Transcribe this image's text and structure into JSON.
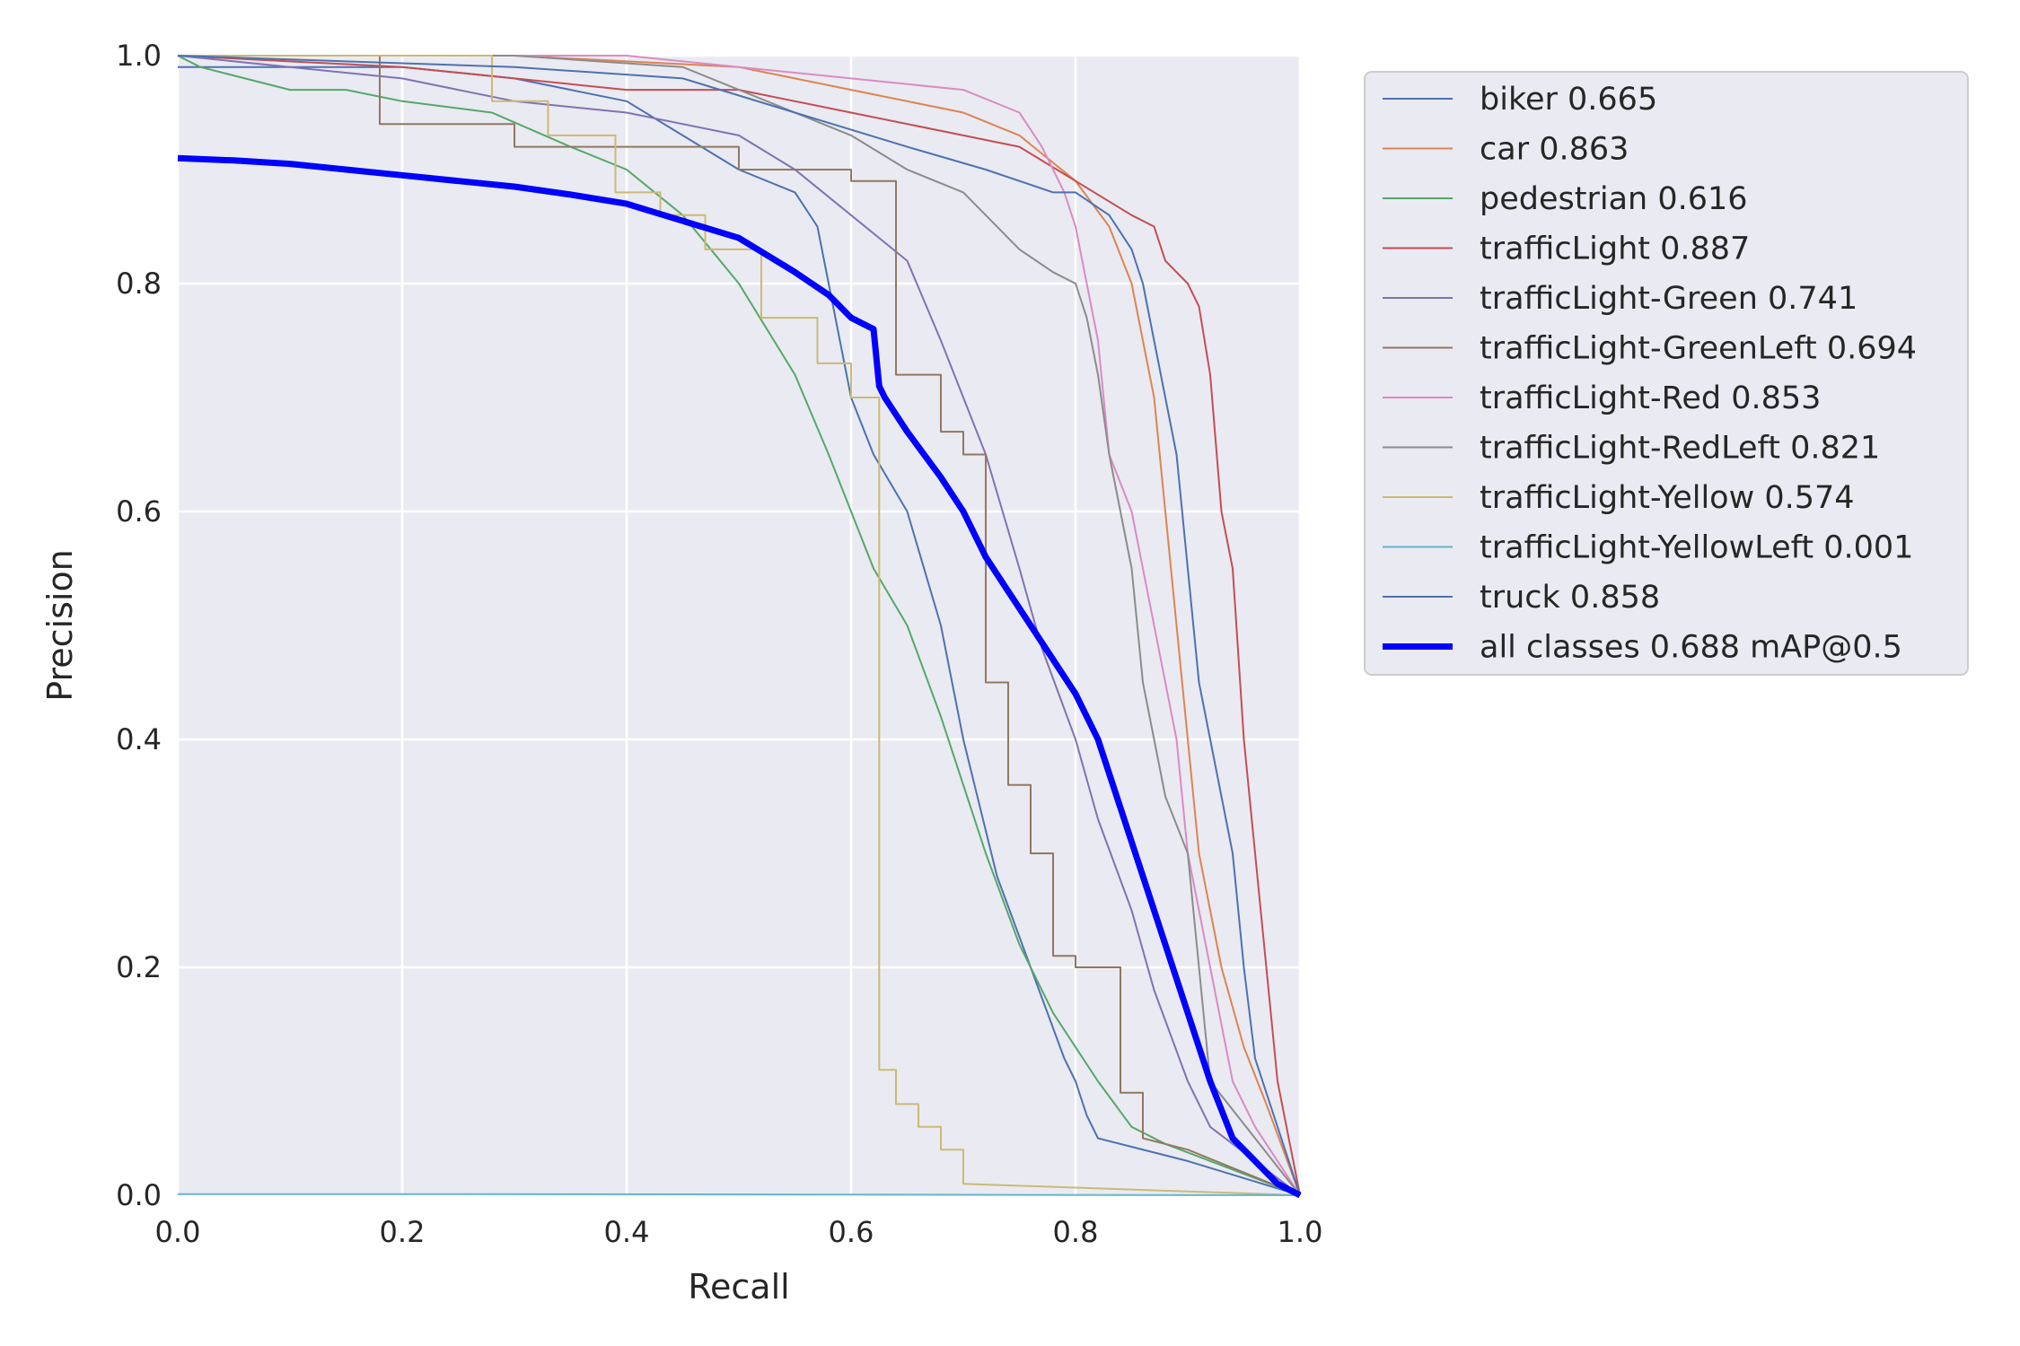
{
  "chart_data": {
    "type": "line",
    "xlabel": "Recall",
    "ylabel": "Precision",
    "xlim": [
      0,
      1
    ],
    "ylim": [
      0,
      1
    ],
    "grid": true,
    "legend_position": "outside-right",
    "x_ticks": [
      "0.0",
      "0.2",
      "0.4",
      "0.6",
      "0.8",
      "1.0"
    ],
    "y_ticks": [
      "0.0",
      "0.2",
      "0.4",
      "0.6",
      "0.8",
      "1.0"
    ],
    "series": [
      {
        "name": "biker 0.665",
        "color": "#4c72b0",
        "width": 2,
        "x": [
          0,
          0.05,
          0.2,
          0.3,
          0.4,
          0.5,
          0.55,
          0.57,
          0.58,
          0.6,
          0.62,
          0.65,
          0.68,
          0.7,
          0.72,
          0.73,
          0.76,
          0.79,
          0.8,
          0.81,
          0.82,
          0.9,
          1.0
        ],
        "y": [
          0.99,
          0.99,
          0.99,
          0.98,
          0.96,
          0.9,
          0.88,
          0.85,
          0.8,
          0.7,
          0.65,
          0.6,
          0.5,
          0.4,
          0.32,
          0.28,
          0.2,
          0.12,
          0.1,
          0.07,
          0.05,
          0.03,
          0.0
        ]
      },
      {
        "name": "car 0.863",
        "color": "#dd8452",
        "width": 2,
        "x": [
          0,
          0.3,
          0.5,
          0.6,
          0.7,
          0.75,
          0.8,
          0.83,
          0.85,
          0.87,
          0.88,
          0.89,
          0.9,
          0.91,
          0.92,
          0.93,
          0.95,
          0.97,
          1.0
        ],
        "y": [
          1.0,
          1.0,
          0.99,
          0.97,
          0.95,
          0.93,
          0.89,
          0.85,
          0.8,
          0.7,
          0.6,
          0.5,
          0.4,
          0.3,
          0.25,
          0.2,
          0.13,
          0.08,
          0.0
        ]
      },
      {
        "name": "pedestrian 0.616",
        "color": "#55a868",
        "width": 2,
        "x": [
          0,
          0.02,
          0.1,
          0.15,
          0.2,
          0.28,
          0.35,
          0.4,
          0.45,
          0.5,
          0.55,
          0.58,
          0.6,
          0.62,
          0.65,
          0.68,
          0.7,
          0.72,
          0.75,
          0.78,
          0.8,
          0.82,
          0.85,
          0.88,
          1.0
        ],
        "y": [
          1.0,
          0.99,
          0.97,
          0.97,
          0.96,
          0.95,
          0.92,
          0.9,
          0.86,
          0.8,
          0.72,
          0.65,
          0.6,
          0.55,
          0.5,
          0.42,
          0.36,
          0.3,
          0.22,
          0.16,
          0.13,
          0.1,
          0.06,
          0.045,
          0.0
        ]
      },
      {
        "name": "trafficLight 0.887",
        "color": "#c44e52",
        "width": 2,
        "x": [
          0,
          0.2,
          0.4,
          0.5,
          0.6,
          0.7,
          0.75,
          0.8,
          0.85,
          0.87,
          0.88,
          0.9,
          0.91,
          0.92,
          0.93,
          0.94,
          0.95,
          0.96,
          0.97,
          0.98,
          1.0
        ],
        "y": [
          1.0,
          0.99,
          0.97,
          0.97,
          0.95,
          0.93,
          0.92,
          0.89,
          0.86,
          0.85,
          0.82,
          0.8,
          0.78,
          0.72,
          0.6,
          0.55,
          0.4,
          0.3,
          0.2,
          0.1,
          0.0
        ]
      },
      {
        "name": "trafficLight-Green 0.741",
        "color": "#8172b3",
        "width": 2,
        "x": [
          0,
          0.1,
          0.2,
          0.3,
          0.4,
          0.5,
          0.55,
          0.6,
          0.65,
          0.68,
          0.7,
          0.72,
          0.75,
          0.77,
          0.8,
          0.82,
          0.85,
          0.87,
          0.9,
          0.92,
          1.0
        ],
        "y": [
          1.0,
          0.99,
          0.98,
          0.96,
          0.95,
          0.93,
          0.9,
          0.86,
          0.82,
          0.75,
          0.7,
          0.65,
          0.55,
          0.48,
          0.4,
          0.33,
          0.25,
          0.18,
          0.1,
          0.06,
          0.0
        ]
      },
      {
        "name": "trafficLight-GreenLeft 0.694",
        "color": "#937860",
        "width": 2,
        "x": [
          0,
          0.18,
          0.18,
          0.3,
          0.3,
          0.4,
          0.5,
          0.5,
          0.6,
          0.6,
          0.64,
          0.64,
          0.68,
          0.68,
          0.7,
          0.7,
          0.72,
          0.72,
          0.74,
          0.74,
          0.76,
          0.76,
          0.78,
          0.78,
          0.8,
          0.8,
          0.84,
          0.84,
          0.86,
          0.86,
          0.9,
          1.0
        ],
        "y": [
          1.0,
          1.0,
          0.94,
          0.94,
          0.92,
          0.92,
          0.92,
          0.9,
          0.9,
          0.89,
          0.89,
          0.72,
          0.72,
          0.67,
          0.67,
          0.65,
          0.65,
          0.45,
          0.45,
          0.36,
          0.36,
          0.3,
          0.3,
          0.21,
          0.21,
          0.2,
          0.2,
          0.09,
          0.09,
          0.05,
          0.04,
          0.0
        ]
      },
      {
        "name": "trafficLight-Red 0.853",
        "color": "#da8bc3",
        "width": 2,
        "x": [
          0,
          0.4,
          0.5,
          0.6,
          0.7,
          0.75,
          0.77,
          0.78,
          0.79,
          0.8,
          0.82,
          0.83,
          0.85,
          0.86,
          0.88,
          0.89,
          0.9,
          0.92,
          0.94,
          0.96,
          1.0
        ],
        "y": [
          1.0,
          1.0,
          0.99,
          0.98,
          0.97,
          0.95,
          0.92,
          0.9,
          0.88,
          0.85,
          0.75,
          0.65,
          0.6,
          0.55,
          0.45,
          0.4,
          0.3,
          0.2,
          0.1,
          0.06,
          0.0
        ]
      },
      {
        "name": "trafficLight-RedLeft 0.821",
        "color": "#8c8c8c",
        "width": 2,
        "x": [
          0,
          0.3,
          0.45,
          0.5,
          0.55,
          0.6,
          0.65,
          0.7,
          0.72,
          0.75,
          0.78,
          0.8,
          0.81,
          0.82,
          0.83,
          0.84,
          0.85,
          0.86,
          0.87,
          0.88,
          0.9,
          0.91,
          0.92,
          1.0
        ],
        "y": [
          1.0,
          1.0,
          0.99,
          0.97,
          0.95,
          0.93,
          0.9,
          0.88,
          0.86,
          0.83,
          0.81,
          0.8,
          0.77,
          0.72,
          0.65,
          0.6,
          0.55,
          0.45,
          0.4,
          0.35,
          0.3,
          0.2,
          0.1,
          0.0
        ]
      },
      {
        "name": "trafficLight-Yellow 0.574",
        "color": "#ccb974",
        "width": 2,
        "x": [
          0,
          0.28,
          0.28,
          0.33,
          0.33,
          0.39,
          0.39,
          0.43,
          0.43,
          0.47,
          0.47,
          0.52,
          0.52,
          0.57,
          0.57,
          0.6,
          0.6,
          0.625,
          0.625,
          0.64,
          0.64,
          0.66,
          0.66,
          0.68,
          0.68,
          0.7,
          0.7,
          1.0
        ],
        "y": [
          1.0,
          1.0,
          0.96,
          0.96,
          0.93,
          0.93,
          0.88,
          0.88,
          0.86,
          0.86,
          0.83,
          0.83,
          0.77,
          0.77,
          0.73,
          0.73,
          0.7,
          0.7,
          0.11,
          0.11,
          0.08,
          0.08,
          0.06,
          0.06,
          0.04,
          0.04,
          0.01,
          0.0
        ]
      },
      {
        "name": "trafficLight-YellowLeft 0.001",
        "color": "#64b5cd",
        "width": 2,
        "x": [
          0,
          0.25,
          1.0
        ],
        "y": [
          0.001,
          0.001,
          0.0
        ]
      },
      {
        "name": "truck 0.858",
        "color": "#4c72b0",
        "width": 2,
        "x": [
          0,
          0.3,
          0.45,
          0.55,
          0.65,
          0.72,
          0.75,
          0.78,
          0.8,
          0.83,
          0.85,
          0.86,
          0.87,
          0.88,
          0.89,
          0.9,
          0.91,
          0.92,
          0.93,
          0.94,
          0.95,
          0.96,
          1.0
        ],
        "y": [
          1.0,
          0.99,
          0.98,
          0.95,
          0.92,
          0.9,
          0.89,
          0.88,
          0.88,
          0.86,
          0.83,
          0.8,
          0.75,
          0.7,
          0.65,
          0.55,
          0.45,
          0.4,
          0.35,
          0.3,
          0.2,
          0.12,
          0.0
        ]
      },
      {
        "name": "all classes 0.688 mAP@0.5",
        "color": "#0000ff",
        "width": 7,
        "x": [
          0,
          0.05,
          0.1,
          0.15,
          0.2,
          0.25,
          0.3,
          0.35,
          0.4,
          0.45,
          0.5,
          0.55,
          0.58,
          0.6,
          0.62,
          0.625,
          0.63,
          0.65,
          0.68,
          0.7,
          0.72,
          0.74,
          0.76,
          0.78,
          0.8,
          0.82,
          0.84,
          0.86,
          0.88,
          0.9,
          0.92,
          0.94,
          0.96,
          0.98,
          1.0
        ],
        "y": [
          0.91,
          0.908,
          0.905,
          0.9,
          0.895,
          0.89,
          0.885,
          0.878,
          0.87,
          0.855,
          0.84,
          0.81,
          0.79,
          0.77,
          0.76,
          0.71,
          0.7,
          0.67,
          0.63,
          0.6,
          0.56,
          0.53,
          0.5,
          0.47,
          0.44,
          0.4,
          0.34,
          0.28,
          0.22,
          0.16,
          0.1,
          0.05,
          0.03,
          0.01,
          0.0
        ]
      }
    ]
  }
}
